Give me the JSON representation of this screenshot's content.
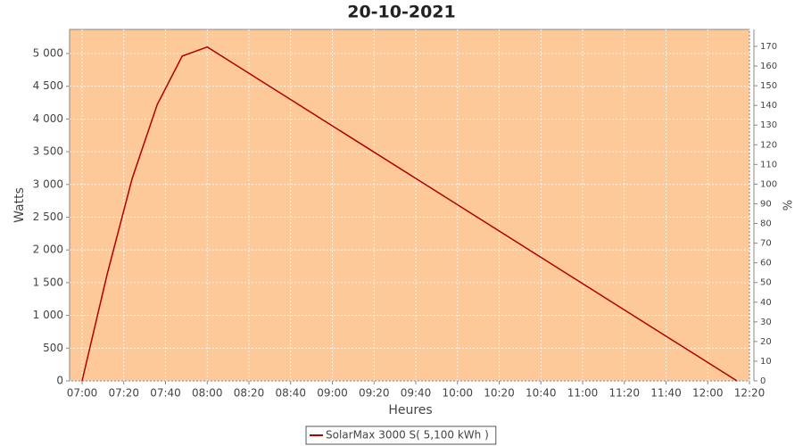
{
  "chart_data": {
    "type": "line",
    "title": "20-10-2021",
    "x_label": "Heures",
    "y_label": "Watts",
    "y2_label": "%",
    "x": [
      "07:00",
      "07:12",
      "07:24",
      "07:36",
      "07:48",
      "08:00",
      "12:14"
    ],
    "series": [
      {
        "name": "SolarMax 3000 S( 5,100 kWh )",
        "color": "#b00000",
        "values": [
          0,
          1630,
          3090,
          4220,
          4960,
          5100,
          0
        ]
      }
    ],
    "xlim": [
      "06:54",
      "12:20"
    ],
    "xticks": [
      "07:00",
      "07:20",
      "07:40",
      "08:00",
      "08:20",
      "08:40",
      "09:00",
      "09:20",
      "09:40",
      "10:00",
      "10:20",
      "10:40",
      "11:00",
      "11:20",
      "11:40",
      "12:00",
      "12:20"
    ],
    "ylim": [
      0,
      5368
    ],
    "yticks": [
      0,
      500,
      {
        "value": 1000,
        "label": "1 000"
      },
      {
        "value": 1500,
        "label": "1 500"
      },
      {
        "value": 2000,
        "label": "2 000"
      },
      {
        "value": 2500,
        "label": "2 500"
      },
      {
        "value": 3000,
        "label": "3 000"
      },
      {
        "value": 3500,
        "label": "3 500"
      },
      {
        "value": 4000,
        "label": "4 000"
      },
      {
        "value": 4500,
        "label": "4 500"
      },
      {
        "value": 5000,
        "label": "5 000"
      }
    ],
    "y2lim": [
      0,
      178.6
    ],
    "y2ticks": [
      0,
      10,
      20,
      30,
      40,
      50,
      60,
      70,
      80,
      90,
      100,
      110,
      120,
      130,
      140,
      150,
      160,
      170
    ],
    "grid": true,
    "plot_background": "#fdc999"
  }
}
